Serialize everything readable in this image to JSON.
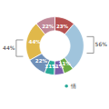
{
  "chart_data": {
    "type": "pie",
    "values": [
      23,
      56,
      11,
      11,
      11,
      22,
      44,
      22
    ],
    "value_labels": [
      "23%",
      null,
      "11%",
      "11%",
      "11%",
      "22%",
      "44%",
      "22%"
    ],
    "colors": [
      "#b55050",
      "#a0c4dc",
      "#6aaa44",
      "#7b60aa",
      "#2aaa99",
      "#7090b8",
      "#e0b84a",
      "#c08898"
    ],
    "data_labels": true,
    "annotations": [
      "56%",
      "44%"
    ],
    "legend": "lower right",
    "legend_entries": [
      {
        "name": "情",
        "color": "#2aaa99"
      }
    ]
  }
}
